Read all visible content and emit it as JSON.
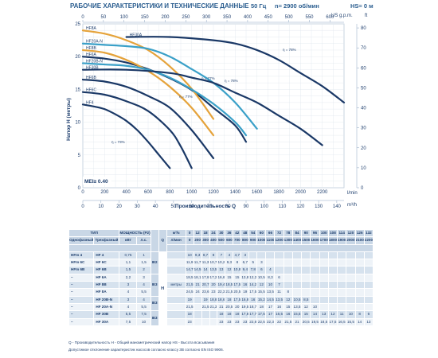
{
  "header": {
    "title": "РАБОЧИЕ ХАРАКТЕРИСТИКИ И ТЕХНИЧЕСКИЕ ДАННЫЕ",
    "freq": "50 Гц",
    "speed": "n= 2900 об/мин",
    "hs": "HS= 0 м"
  },
  "chart_data": {
    "type": "line",
    "ylabel": "Напор H (метры)",
    "xlabel": "Производительность Q",
    "x_unit_main": "l/min",
    "x_unit_alt": "m³/h",
    "y_unit_alt_top": "US g.p.m.",
    "y_unit_right": "ft",
    "xlim": [
      0,
      2400
    ],
    "ylim": [
      0,
      25
    ],
    "x_ticks": [
      0,
      200,
      400,
      600,
      800,
      1000,
      1200,
      1400,
      1600,
      1800,
      2000,
      2200
    ],
    "y_ticks": [
      0,
      5,
      10,
      15,
      20,
      25
    ],
    "x_alt_ticks": [
      0,
      10,
      20,
      30,
      40,
      50,
      60,
      70,
      80,
      90,
      100,
      110,
      120,
      130,
      140
    ],
    "top_ticks": [
      0,
      50,
      100,
      150,
      200,
      250,
      300,
      350,
      400,
      450,
      500,
      550,
      600
    ],
    "right_ticks": [
      0,
      10,
      20,
      30,
      40,
      50,
      60,
      70,
      80
    ],
    "grid": true,
    "mei_label": "MEI≥ 0.40",
    "series": [
      {
        "name": "HF 4",
        "color": "#1a3866",
        "x": [
          0,
          100,
          200,
          300,
          400,
          500,
          600,
          700,
          800
        ],
        "y": [
          12.7,
          12.4,
          12,
          11.2,
          10.2,
          8.8,
          7,
          5,
          3
        ]
      },
      {
        "name": "HF 6C",
        "color": "#1a3866",
        "x": [
          0,
          200,
          400,
          600,
          800,
          900,
          1000
        ],
        "y": [
          14.6,
          14.2,
          13.2,
          11.7,
          8.8,
          6.3,
          3
        ]
      },
      {
        "name": "HF 6B",
        "color": "#1a3866",
        "x": [
          0,
          200,
          400,
          600,
          800,
          1000,
          1200
        ],
        "y": [
          16.5,
          16.2,
          15.4,
          14,
          12.2,
          8.8,
          4.5
        ]
      },
      {
        "name": "HF 6A",
        "color": "#1a3866",
        "x": [
          0,
          200,
          400,
          600,
          800,
          1000,
          1200,
          1400,
          1500
        ],
        "y": [
          20,
          19.7,
          19.1,
          18.1,
          16.7,
          14.9,
          12.2,
          9.5,
          7
        ]
      },
      {
        "name": "HF 8B",
        "color": "#e5a33b",
        "x": [
          0,
          200,
          400,
          600,
          800,
          1000,
          1200
        ],
        "y": [
          21,
          20.6,
          19.5,
          17.8,
          15.4,
          12.2,
          8
        ]
      },
      {
        "name": "HF 8A",
        "color": "#e5a33b",
        "x": [
          0,
          200,
          400,
          600,
          800,
          1000,
          1200
        ],
        "y": [
          24,
          23.5,
          22.5,
          21,
          18.5,
          15.1,
          10.5
        ]
      },
      {
        "name": "HF 20B-N",
        "color": "#3aa0c8",
        "x": [
          0,
          200,
          400,
          600,
          800,
          1000,
          1200,
          1400,
          1500
        ],
        "y": [
          19,
          18.8,
          18.6,
          18,
          16.8,
          15,
          12.8,
          10,
          8
        ]
      },
      {
        "name": "HF 20A-N",
        "color": "#3aa0c8",
        "x": [
          0,
          200,
          400,
          600,
          800,
          1000,
          1200,
          1400,
          1600
        ],
        "y": [
          22,
          21.8,
          21.6,
          21.2,
          20,
          18.1,
          16,
          13,
          9
        ]
      },
      {
        "name": "HF 30B",
        "color": "#1a3866",
        "x": [
          0,
          400,
          800,
          1000,
          1200,
          1400,
          1600,
          1800,
          2000,
          2200
        ],
        "y": [
          18,
          18,
          17.5,
          16.8,
          16,
          14.5,
          13,
          11,
          9,
          6.5
        ]
      },
      {
        "name": "HF 30A",
        "color": "#1a3866",
        "x": [
          400,
          800,
          1200,
          1400,
          1600,
          1800,
          2000,
          2200,
          2400
        ],
        "y": [
          23,
          23,
          22.5,
          22,
          21,
          19.5,
          17.5,
          15.5,
          13
        ]
      }
    ],
    "efficiency_labels": [
      "η = 78%",
      "η = 77%",
      "η = 78%",
      "η = 77%",
      "η = 73%"
    ]
  },
  "table": {
    "group_header_type": "ТИП",
    "header_single": "Однофазный",
    "header_three": "Трехфазный",
    "header_power": "МОЩНОСТЬ (P2)",
    "header_kw": "кВт",
    "header_hp": "л.с.",
    "q_symbol": "Q",
    "m3h_label": "м³/ч",
    "lmin_label": "л/мин",
    "h_label": "H",
    "h_unit": "метры",
    "flow_m3h": [
      "0",
      "12",
      "18",
      "24",
      "30",
      "36",
      "42",
      "48",
      "54",
      "60",
      "66",
      "72",
      "78",
      "84",
      "90",
      "96",
      "100",
      "108",
      "114",
      "120",
      "126",
      "132"
    ],
    "flow_lmin": [
      "0",
      "200",
      "300",
      "400",
      "500",
      "600",
      "700",
      "800",
      "900",
      "1000",
      "1100",
      "1200",
      "1300",
      "1400",
      "1500",
      "1600",
      "1700",
      "1800",
      "1900",
      "2000",
      "2100",
      "2200"
    ],
    "class_groups": [
      "IE2",
      "IE3",
      "IE3",
      "IE3"
    ],
    "rows": [
      {
        "single": "HFm 4",
        "three": "HF 4",
        "kw": "0,75",
        "hp": "1",
        "h": [
          "10",
          "9,3",
          "8,7",
          "8",
          "7",
          "4",
          "4,7",
          "3",
          "",
          "",
          "",
          "",
          "",
          "",
          "",
          "",
          "",
          "",
          "",
          "",
          "",
          ""
        ]
      },
      {
        "single": "HFm 6C",
        "three": "HF 6C",
        "kw": "1,1",
        "hp": "1,5",
        "h": [
          "11,9",
          "11,7",
          "11,3",
          "10,7",
          "10,2",
          "9,3",
          "8",
          "6,7",
          "5",
          "3",
          "",
          "",
          "",
          "",
          "",
          "",
          "",
          "",
          "",
          "",
          "",
          ""
        ]
      },
      {
        "single": "HFm 6B",
        "three": "HF 6B",
        "kw": "1,5",
        "hp": "2",
        "h": [
          "14,7",
          "14,5",
          "14",
          "13,5",
          "13",
          "12",
          "10,8",
          "9,4",
          "7,8",
          "6",
          "4",
          "",
          "",
          "",
          "",
          "",
          "",
          "",
          "",
          "",
          "",
          ""
        ]
      },
      {
        "single": "–",
        "three": "HF 6A",
        "kw": "2,2",
        "hp": "3",
        "h": [
          "18,5",
          "18,1",
          "17,8",
          "17,2",
          "16,6",
          "15",
          "15",
          "13,8",
          "12,2",
          "10,5",
          "8,3",
          "6",
          "",
          "",
          "",
          "",
          "",
          "",
          "",
          "",
          "",
          ""
        ]
      },
      {
        "single": "–",
        "three": "HF 8B",
        "kw": "3",
        "hp": "4",
        "h": [
          "21,5",
          "21",
          "20,7",
          "20",
          "19,4",
          "18,5",
          "17,5",
          "16",
          "14,2",
          "12",
          "10",
          "7",
          "",
          "",
          "",
          "",
          "",
          "",
          "",
          "",
          "",
          ""
        ]
      },
      {
        "single": "–",
        "three": "HF 8A",
        "kw": "4",
        "hp": "5,5",
        "h": [
          "24,5",
          "24",
          "23,6",
          "23",
          "22,3",
          "21,5",
          "20,5",
          "19",
          "17,5",
          "15,5",
          "13,5",
          "11",
          "8",
          "",
          "",
          "",
          "",
          "",
          "",
          "",
          "",
          ""
        ]
      },
      {
        "single": "–",
        "three": "HF 20B-N",
        "kw": "3",
        "hp": "4",
        "h": [
          "19",
          "",
          "19",
          "18,8",
          "18,6",
          "18",
          "17,5",
          "16,8",
          "16",
          "15,2",
          "14,5",
          "13,5",
          "12",
          "10,5",
          "8,5",
          "",
          "",
          "",
          "",
          "",
          "",
          ""
        ]
      },
      {
        "single": "–",
        "three": "HF 20A-N",
        "kw": "4",
        "hp": "5,5",
        "h": [
          "21,5",
          "",
          "21,5",
          "21,3",
          "21",
          "20,5",
          "20",
          "19,5",
          "18,7",
          "18",
          "17",
          "16",
          "15",
          "13,5",
          "12",
          "10",
          "",
          "",
          "",
          "",
          "",
          ""
        ]
      },
      {
        "single": "–",
        "three": "HF 30B",
        "kw": "5,5",
        "hp": "7,5",
        "h": [
          "18",
          "",
          "",
          "",
          "18",
          "18",
          "18",
          "17,8",
          "17,7",
          "17,5",
          "17",
          "16,5",
          "16",
          "15,5",
          "15",
          "14",
          "13",
          "12",
          "11",
          "10",
          "8",
          "6"
        ]
      },
      {
        "single": "–",
        "three": "HF 30A",
        "kw": "7,5",
        "hp": "10",
        "h": [
          "23",
          "",
          "",
          "",
          "23",
          "23",
          "23",
          "23",
          "22,8",
          "22,5",
          "22,3",
          "22",
          "21,5",
          "21",
          "20,5",
          "19,5",
          "18,5",
          "17,5",
          "16,5",
          "15,5",
          "14",
          "13"
        ]
      }
    ]
  },
  "footer": {
    "line1": "Q - Производительность   H - Общий манометрический напор   HS - Высота всасывания",
    "line2": "Допустимое отклонение характеристик насосов согласно классу 3B согласно EN ISO 9906."
  }
}
